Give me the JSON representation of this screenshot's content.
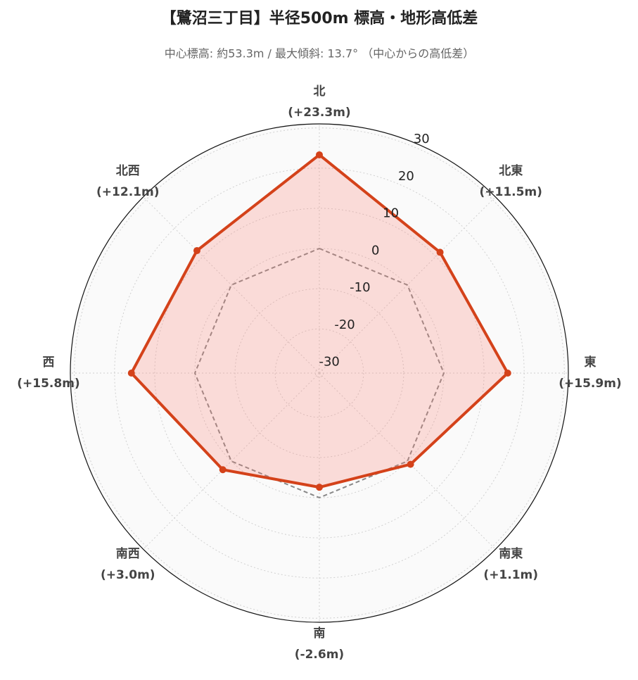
{
  "chart_data": {
    "type": "radar",
    "title": "【鷺沼三丁目】半径500m 標高・地形高低差",
    "subtitle": "中心標高: 約53.3m / 最大傾斜: 13.7° （中心からの高低差）",
    "categories": [
      "北",
      "北東",
      "東",
      "南東",
      "南",
      "南西",
      "西",
      "北西"
    ],
    "series": [
      {
        "color": "#d4421a",
        "fill": "rgba(250,128,114,0.25)",
        "values": [
          23.3,
          11.5,
          15.9,
          1.1,
          -2.6,
          3.0,
          15.8,
          12.1
        ],
        "value_labels": [
          "(+23.3m)",
          "(+11.5m)",
          "(+15.9m)",
          "(+1.1m)",
          "(-2.6m)",
          "(+3.0m)",
          "(+15.8m)",
          "(+12.1m)"
        ]
      },
      {
        "color": "#888888",
        "dashed": true,
        "values": [
          0,
          0,
          0,
          0,
          0,
          0,
          0,
          0
        ]
      }
    ],
    "rlim": [
      -31,
      31
    ],
    "rticks": [
      -30,
      -20,
      -10,
      0,
      10,
      20,
      30
    ],
    "grid": true
  }
}
